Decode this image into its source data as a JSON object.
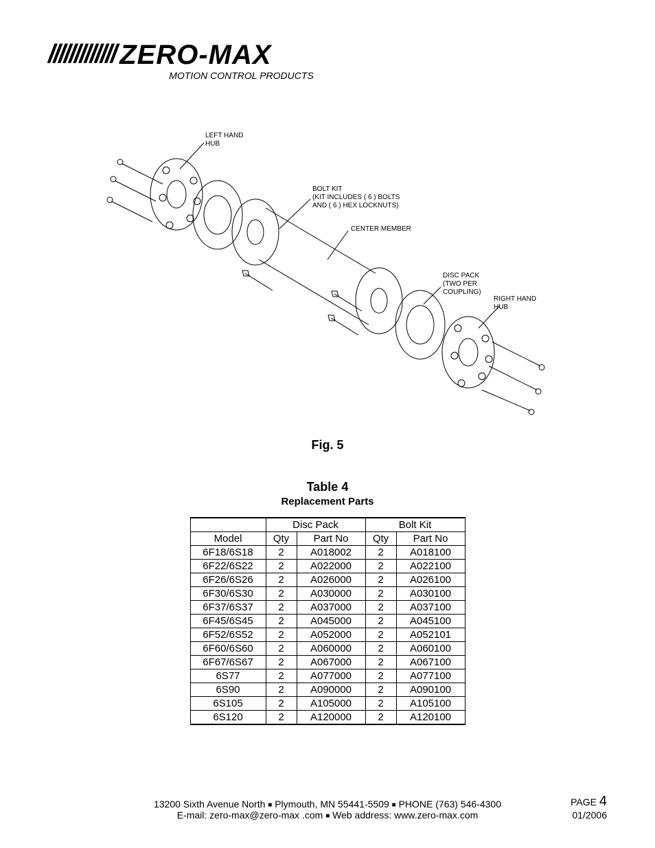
{
  "header": {
    "slashes": "/////////////",
    "brand": "ZERO-MAX",
    "subtitle": "MOTION CONTROL PRODUCTS"
  },
  "callouts": {
    "left_hub": "LEFT HAND\nHUB",
    "bolt_kit": "BOLT KIT\n(KIT INCLUDES ( 6 ) BOLTS\nAND ( 6 ) HEX LOCKNUTS)",
    "center_member": "CENTER MEMBER",
    "disc_pack": "DISC PACK\n(TWO PER\nCOUPLING)",
    "right_hub": "RIGHT HAND\nHUB"
  },
  "figure_caption": "Fig. 5",
  "table": {
    "title": "Table 4",
    "subtitle": "Replacement Parts",
    "group_headers": [
      "",
      "Disc Pack",
      "Bolt Kit"
    ],
    "col_headers": [
      "Model",
      "Qty",
      "Part No",
      "Qty",
      "Part No"
    ],
    "rows": [
      [
        "6F18/6S18",
        "2",
        "A018002",
        "2",
        "A018100"
      ],
      [
        "6F22/6S22",
        "2",
        "A022000",
        "2",
        "A022100"
      ],
      [
        "6F26/6S26",
        "2",
        "A026000",
        "2",
        "A026100"
      ],
      [
        "6F30/6S30",
        "2",
        "A030000",
        "2",
        "A030100"
      ],
      [
        "6F37/6S37",
        "2",
        "A037000",
        "2",
        "A037100"
      ],
      [
        "6F45/6S45",
        "2",
        "A045000",
        "2",
        "A045100"
      ],
      [
        "6F52/6S52",
        "2",
        "A052000",
        "2",
        "A052101"
      ],
      [
        "6F60/6S60",
        "2",
        "A060000",
        "2",
        "A060100"
      ],
      [
        "6F67/6S67",
        "2",
        "A067000",
        "2",
        "A067100"
      ],
      [
        "6S77",
        "2",
        "A077000",
        "2",
        "A077100"
      ],
      [
        "6S90",
        "2",
        "A090000",
        "2",
        "A090100"
      ],
      [
        "6S105",
        "2",
        "A105000",
        "2",
        "A105100"
      ],
      [
        "6S120",
        "2",
        "A120000",
        "2",
        "A120100"
      ]
    ]
  },
  "footer": {
    "address": "13200 Sixth Avenue North",
    "city": "Plymouth, MN  55441-5509",
    "phone": "PHONE (763) 546-4300",
    "email_label": "E-mail:",
    "email": "zero-max@zero-max .com",
    "web_label": "Web address:",
    "web": "www.zero-max.com",
    "page_label": "PAGE",
    "page_number": "4",
    "date": "01/2006"
  },
  "style": {
    "text_color": "#000000",
    "background": "#ffffff",
    "border_color": "#000000",
    "table_border_width_outer": 2,
    "table_border_width_inner": 1,
    "body_font": "Arial",
    "brand_fontsize": 40,
    "subtitle_fontsize": 14,
    "caption_fontsize": 18,
    "table_fontsize": 15,
    "callout_fontsize": 10,
    "footer_fontsize": 14,
    "col_widths": {
      "model": 110,
      "qty": 45,
      "partno": 100
    }
  }
}
